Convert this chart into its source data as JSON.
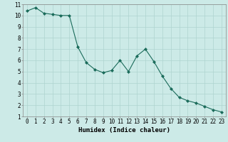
{
  "x": [
    0,
    1,
    2,
    3,
    4,
    5,
    6,
    7,
    8,
    9,
    10,
    11,
    12,
    13,
    14,
    15,
    16,
    17,
    18,
    19,
    20,
    21,
    22,
    23
  ],
  "y": [
    10.4,
    10.7,
    10.2,
    10.1,
    10.0,
    10.0,
    7.2,
    5.8,
    5.2,
    4.9,
    5.1,
    6.0,
    5.0,
    6.4,
    7.0,
    5.9,
    4.6,
    3.5,
    2.7,
    2.4,
    2.2,
    1.9,
    1.6,
    1.4
  ],
  "line_color": "#1a6b5a",
  "marker": "D",
  "marker_size": 2,
  "xlabel": "Humidex (Indice chaleur)",
  "xlim": [
    -0.5,
    23.5
  ],
  "ylim": [
    1,
    11
  ],
  "yticks": [
    1,
    2,
    3,
    4,
    5,
    6,
    7,
    8,
    9,
    10,
    11
  ],
  "xticks": [
    0,
    1,
    2,
    3,
    4,
    5,
    6,
    7,
    8,
    9,
    10,
    11,
    12,
    13,
    14,
    15,
    16,
    17,
    18,
    19,
    20,
    21,
    22,
    23
  ],
  "bg_color": "#cceae7",
  "grid_color": "#aed4d0",
  "tick_label_fontsize": 5.5,
  "xlabel_fontsize": 6.5,
  "xlabel_fontweight": "bold",
  "linewidth": 0.8
}
